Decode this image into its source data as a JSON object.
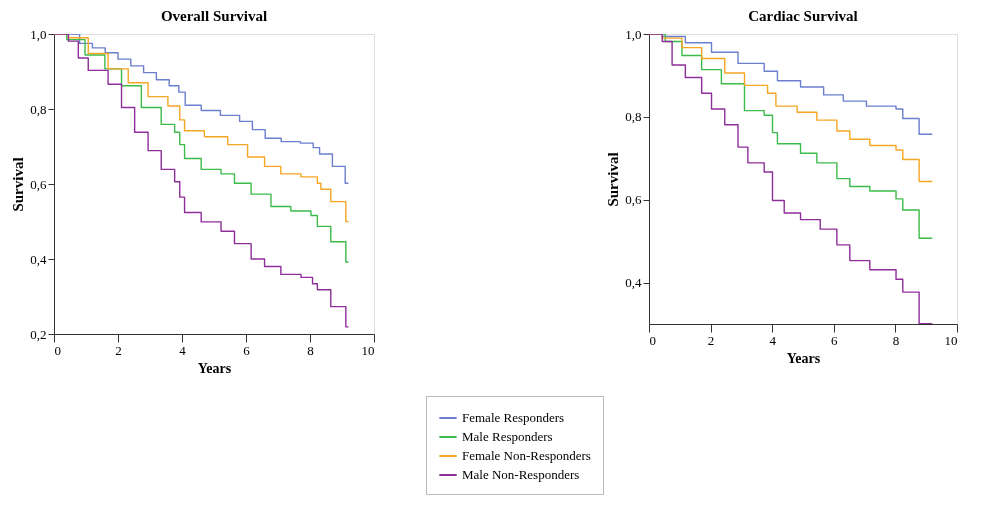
{
  "chart_data": [
    {
      "type": "step",
      "title": "Overall Survival",
      "xlabel": "Years",
      "ylabel": "Survival",
      "xlim": [
        0,
        10
      ],
      "xticks": [
        0,
        2,
        4,
        6,
        8,
        10
      ],
      "ylim": [
        0.2,
        1.0
      ],
      "yticks": [
        {
          "value": 0.2,
          "label": "0,2"
        },
        {
          "value": 0.4,
          "label": "0,4"
        },
        {
          "value": 0.6,
          "label": "0,6"
        },
        {
          "value": 0.8,
          "label": "0,8"
        },
        {
          "value": 1.0,
          "label": "1,0"
        }
      ],
      "grid": false,
      "legend": "bottom",
      "marker": "none",
      "line_style": "solid",
      "series": [
        {
          "name": "Female Responders",
          "color": "#6a7fcf",
          "x": [
            0,
            0.4,
            0.8,
            1.2,
            1.6,
            2.0,
            2.4,
            2.8,
            3.2,
            3.6,
            3.9,
            4.1,
            4.6,
            5.2,
            5.8,
            6.2,
            6.6,
            7.1,
            7.7,
            8.1,
            8.3,
            8.7,
            9.1,
            9.2
          ],
          "values": [
            1,
            1,
            0.975,
            0.963,
            0.95,
            0.933,
            0.915,
            0.897,
            0.878,
            0.862,
            0.845,
            0.81,
            0.796,
            0.783,
            0.767,
            0.745,
            0.722,
            0.713,
            0.709,
            0.697,
            0.68,
            0.647,
            0.602,
            0.602
          ]
        },
        {
          "name": "Male Responders",
          "color": "#3dbb4a",
          "x": [
            0,
            0.4,
            0.97,
            1.59,
            2.11,
            2.73,
            3.35,
            3.77,
            3.93,
            4.08,
            4.6,
            5.22,
            5.64,
            6.16,
            6.78,
            7.4,
            8.03,
            8.23,
            8.65,
            9.12,
            9.2
          ],
          "values": [
            1,
            0.985,
            0.944,
            0.907,
            0.862,
            0.804,
            0.759,
            0.738,
            0.705,
            0.668,
            0.639,
            0.627,
            0.602,
            0.573,
            0.54,
            0.528,
            0.516,
            0.487,
            0.446,
            0.392,
            0.392
          ]
        },
        {
          "name": "Female Non-Responders",
          "color": "#f5a623",
          "x": [
            0,
            0.45,
            1.07,
            1.69,
            2.32,
            2.94,
            3.56,
            3.93,
            4.08,
            4.7,
            5.43,
            6.05,
            6.58,
            7.09,
            7.72,
            8.23,
            8.34,
            8.65,
            9.12,
            9.2
          ],
          "values": [
            1,
            0.99,
            0.948,
            0.907,
            0.87,
            0.833,
            0.808,
            0.771,
            0.742,
            0.726,
            0.705,
            0.672,
            0.647,
            0.627,
            0.619,
            0.602,
            0.586,
            0.553,
            0.5,
            0.5
          ]
        },
        {
          "name": "Male Non-Responders",
          "color": "#8e2e9a",
          "x": [
            0,
            0.45,
            0.76,
            1.07,
            1.69,
            2.11,
            2.52,
            2.94,
            3.35,
            3.77,
            3.93,
            4.08,
            4.6,
            5.22,
            5.64,
            6.16,
            6.58,
            7.09,
            7.72,
            8.08,
            8.23,
            8.65,
            9.12,
            9.2
          ],
          "values": [
            1,
            0.981,
            0.936,
            0.903,
            0.866,
            0.804,
            0.738,
            0.689,
            0.639,
            0.606,
            0.565,
            0.524,
            0.499,
            0.474,
            0.441,
            0.4,
            0.38,
            0.359,
            0.351,
            0.334,
            0.318,
            0.273,
            0.219,
            0.219
          ]
        }
      ]
    },
    {
      "type": "step",
      "title": "Cardiac Survival",
      "xlabel": "Years",
      "ylabel": "Survival",
      "xlim": [
        0,
        10
      ],
      "xticks": [
        0,
        2,
        4,
        6,
        8,
        10
      ],
      "ylim": [
        0.3,
        1.0
      ],
      "yticks": [
        {
          "value": 0.4,
          "label": "0,4"
        },
        {
          "value": 0.6,
          "label": "0,6"
        },
        {
          "value": 0.8,
          "label": "0,8"
        },
        {
          "value": 1.0,
          "label": "1,0"
        }
      ],
      "grid": false,
      "legend": "bottom",
      "marker": "none",
      "line_style": "solid",
      "series": [
        {
          "name": "Female Responders",
          "color": "#6a7fcf",
          "x": [
            0,
            0.43,
            1.18,
            2.03,
            2.89,
            3.74,
            4.17,
            4.92,
            5.67,
            6.31,
            7.06,
            8.02,
            8.24,
            8.77,
            9.2
          ],
          "values": [
            1,
            0.994,
            0.979,
            0.956,
            0.929,
            0.91,
            0.887,
            0.872,
            0.853,
            0.838,
            0.826,
            0.819,
            0.796,
            0.758,
            0.758
          ]
        },
        {
          "name": "Male Responders",
          "color": "#3dbb4a",
          "x": [
            0,
            0.53,
            1.07,
            1.71,
            2.35,
            3.1,
            3.74,
            4.01,
            4.17,
            4.92,
            5.45,
            6.1,
            6.52,
            7.17,
            8.02,
            8.24,
            8.77,
            9.2
          ],
          "values": [
            1,
            0.982,
            0.948,
            0.914,
            0.88,
            0.815,
            0.804,
            0.762,
            0.735,
            0.712,
            0.689,
            0.651,
            0.632,
            0.621,
            0.602,
            0.575,
            0.507,
            0.507
          ]
        },
        {
          "name": "Female Non-Responders",
          "color": "#f5a623",
          "x": [
            0,
            0.43,
            1.07,
            1.71,
            2.46,
            3.1,
            3.85,
            4.12,
            4.81,
            5.45,
            6.1,
            6.52,
            7.17,
            8.02,
            8.24,
            8.77,
            9.2
          ],
          "values": [
            1,
            0.99,
            0.967,
            0.941,
            0.906,
            0.876,
            0.857,
            0.826,
            0.811,
            0.792,
            0.766,
            0.746,
            0.731,
            0.72,
            0.697,
            0.644,
            0.644
          ]
        },
        {
          "name": "Male Non-Responders",
          "color": "#8e2e9a",
          "x": [
            0,
            0.43,
            0.75,
            1.18,
            1.71,
            2.03,
            2.46,
            2.89,
            3.21,
            3.74,
            4.01,
            4.39,
            4.92,
            5.56,
            6.1,
            6.52,
            7.17,
            8.02,
            8.24,
            8.77,
            9.2
          ],
          "values": [
            1,
            0.982,
            0.925,
            0.895,
            0.857,
            0.819,
            0.781,
            0.727,
            0.689,
            0.667,
            0.598,
            0.568,
            0.552,
            0.529,
            0.491,
            0.453,
            0.431,
            0.408,
            0.377,
            0.301,
            0.301
          ]
        }
      ]
    }
  ]
}
